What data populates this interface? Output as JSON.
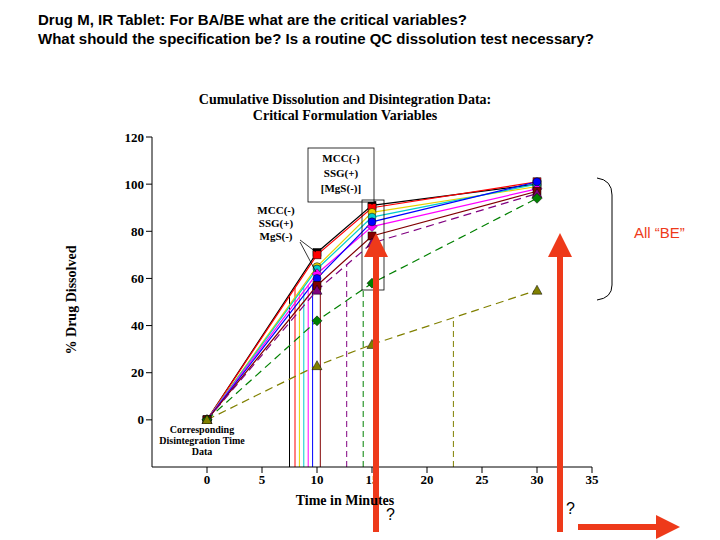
{
  "chart_data": {
    "type": "line",
    "header": [
      "Drug M, IR Tablet: For BA/BE what are the critical variables?",
      "What should the specification be? Is a routine QC dissolution test necessary?"
    ],
    "title": [
      "Cumulative Dissolution and Disintegration Data:",
      "Critical Formulation Variables"
    ],
    "x_label": "Time in Minutes",
    "y_label": "% Drug Dissolved",
    "x": [
      0,
      10,
      15,
      30
    ],
    "xlim": [
      -5,
      35
    ],
    "xticks": [
      0,
      5,
      10,
      15,
      20,
      25,
      30,
      35
    ],
    "ylim": [
      -20,
      120
    ],
    "yticks": [
      0,
      20,
      40,
      60,
      80,
      100,
      120
    ],
    "grid": false,
    "series": [
      {
        "color": "#000000",
        "marker": "square",
        "line_style": "solid",
        "values": [
          0,
          71,
          91,
          100
        ],
        "disintegration_time": 7.5
      },
      {
        "color": "#ff0000",
        "marker": "square",
        "line_style": "solid",
        "values": [
          0,
          70,
          90,
          101
        ],
        "disintegration_time": 8
      },
      {
        "color": "#e6d200",
        "marker": "circle",
        "line_style": "solid",
        "values": [
          0,
          65,
          88,
          99
        ],
        "disintegration_time": 8.4
      },
      {
        "color": "#00cccc",
        "marker": "circle",
        "line_style": "solid",
        "values": [
          0,
          64,
          86,
          100
        ],
        "disintegration_time": 8.8
      },
      {
        "color": "#ff00ff",
        "marker": "diamond",
        "line_style": "solid",
        "values": [
          0,
          62,
          82,
          98
        ],
        "disintegration_time": 9.2
      },
      {
        "color": "#0000ff",
        "marker": "circle",
        "line_style": "solid",
        "values": [
          0,
          60,
          84,
          101
        ],
        "disintegration_time": 9.6
      },
      {
        "color": "#800000",
        "marker": "square",
        "line_style": "solid",
        "values": [
          0,
          57,
          78,
          97
        ],
        "disintegration_time": 10.3
      },
      {
        "color": "#800080",
        "marker": "triangle",
        "line_style": "dashed",
        "values": [
          0,
          55,
          75,
          96
        ],
        "disintegration_time": 12.7
      },
      {
        "color": "#008000",
        "marker": "diamond",
        "line_style": "dashed",
        "values": [
          0,
          42,
          58,
          94
        ],
        "disintegration_time": 14.2
      },
      {
        "color": "#808000",
        "marker": "triangle",
        "line_style": "dashed",
        "values": [
          0,
          23,
          32,
          55
        ],
        "disintegration_time": 22.4
      }
    ],
    "annotations": {
      "box_label": [
        "MCC(-)",
        "SSG(+)",
        "[MgS(-)]"
      ],
      "label_10min": [
        "MCC(-)",
        "SSG(+)",
        "MgS(-)"
      ],
      "all_be": "All “BE”",
      "disintegration": [
        "Corresponding",
        "Disintegration Time",
        "Data"
      ],
      "questions": [
        "?",
        "?"
      ]
    }
  }
}
